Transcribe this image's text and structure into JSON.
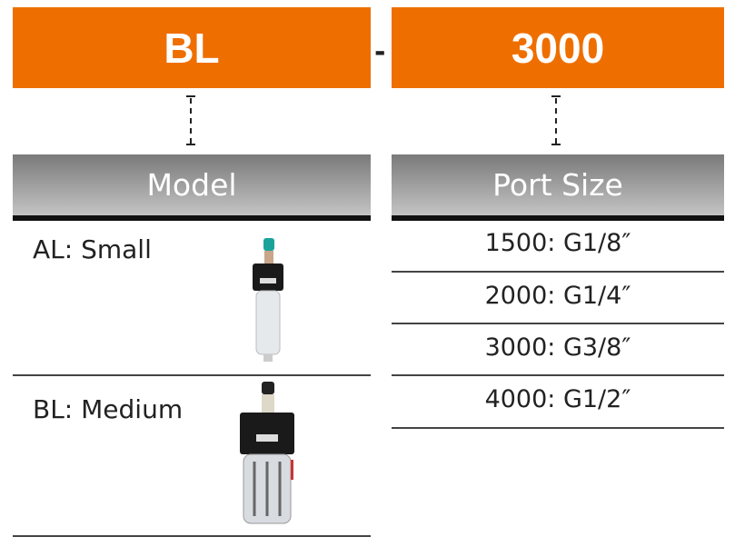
{
  "code": {
    "model": "BL",
    "separator": "-",
    "port": "3000"
  },
  "headers": {
    "model": "Model",
    "port": "Port Size"
  },
  "models": [
    {
      "label": "AL: Small",
      "image": "small-lubricator-icon"
    },
    {
      "label": "BL: Medium",
      "image": "medium-lubricator-icon"
    }
  ],
  "ports": [
    "1500: G1/8″",
    "2000: G1/4″",
    "3000: G3/8″",
    "4000: G1/2″"
  ],
  "colors": {
    "accent": "#ee6f00",
    "header": "#8a8a8a"
  }
}
